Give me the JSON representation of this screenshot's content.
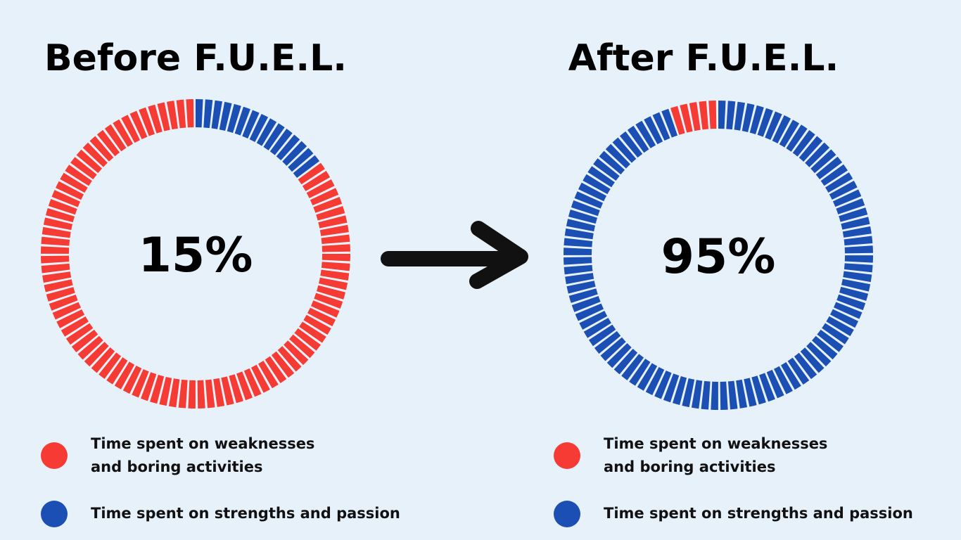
{
  "chart_data": [
    {
      "type": "donut",
      "title": "Before F.U.E.L.",
      "center_label": "15%",
      "categories": [
        "Time spent on weaknesses\nand boring activities",
        "Time spent on strengths and passion"
      ],
      "values": [
        85,
        15
      ],
      "colors": [
        "#f53b33",
        "#1b4fb3"
      ]
    },
    {
      "type": "donut",
      "title": "After F.U.E.L.",
      "center_label": "95%",
      "categories": [
        "Time spent on weaknesses\nand boring activities",
        "Time spent on strengths and passion"
      ],
      "values": [
        5,
        95
      ],
      "colors": [
        "#f53b33",
        "#1b4fb3"
      ]
    }
  ]
}
